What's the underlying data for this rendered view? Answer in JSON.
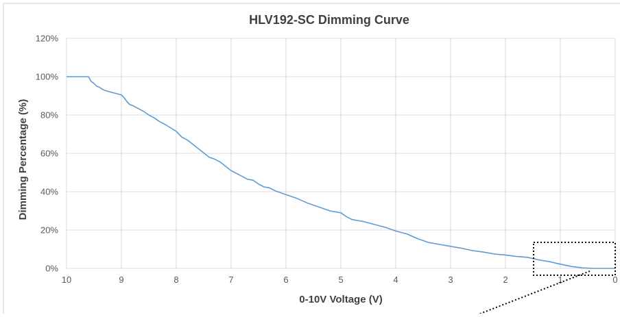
{
  "chart_data": {
    "type": "line",
    "title": "HLV192-SC Dimming Curve",
    "xlabel": "0-10V Voltage (V)",
    "ylabel": "Dimming Percentage (%)",
    "xlim": [
      10,
      0
    ],
    "ylim": [
      0,
      120
    ],
    "x_reversed": true,
    "grid": true,
    "legend": "none",
    "line_color": "#5b9bd5",
    "x_ticks": [
      "10",
      "9",
      "8",
      "7",
      "6",
      "5",
      "4",
      "3",
      "2",
      "1",
      "0"
    ],
    "x_tick_values": [
      10,
      9,
      8,
      7,
      6,
      5,
      4,
      3,
      2,
      1,
      0
    ],
    "y_ticks": [
      "0%",
      "20%",
      "40%",
      "60%",
      "80%",
      "100%",
      "120%"
    ],
    "y_tick_values": [
      0,
      20,
      40,
      60,
      80,
      100,
      120
    ],
    "series": [
      {
        "x": [
          10,
          9.7,
          9.6,
          9.55,
          9.5,
          9.45,
          9.4,
          9.35,
          9.3,
          9.2,
          9.0,
          8.95,
          8.9,
          8.85,
          8.8,
          8.7,
          8.6,
          8.5,
          8.4,
          8.3,
          8.2,
          8.0,
          7.9,
          7.8,
          7.6,
          7.4,
          7.3,
          7.2,
          7.0,
          6.8,
          6.7,
          6.6,
          6.5,
          6.4,
          6.3,
          6.2,
          6.0,
          5.8,
          5.6,
          5.4,
          5.2,
          5.0,
          4.9,
          4.8,
          4.7,
          4.6,
          4.4,
          4.2,
          4.0,
          3.8,
          3.6,
          3.4,
          3.2,
          3.0,
          2.8,
          2.6,
          2.4,
          2.2,
          2.0,
          1.8,
          1.6,
          1.4,
          1.2,
          1.0,
          0.8,
          0.6,
          0.4,
          0.2,
          0
        ],
        "y": [
          100,
          100,
          100,
          97.5,
          96.5,
          95,
          94.5,
          93.5,
          92.8,
          92,
          90.5,
          89,
          87,
          85.5,
          85,
          83.5,
          82,
          80,
          78.5,
          76.5,
          75,
          71.5,
          68.5,
          67,
          62.5,
          58,
          57,
          55.5,
          51,
          48,
          46.5,
          46,
          44,
          42.5,
          42,
          40.5,
          38.5,
          36.5,
          34,
          32,
          30,
          29,
          27,
          25.5,
          25,
          24.5,
          23,
          21.5,
          19.5,
          18,
          15.5,
          13.5,
          12.5,
          11.5,
          10.5,
          9.3,
          8.5,
          7.5,
          7,
          6.2,
          5.8,
          4.5,
          3.5,
          2.2,
          1.0,
          0.3,
          0,
          0,
          0
        ]
      }
    ]
  }
}
